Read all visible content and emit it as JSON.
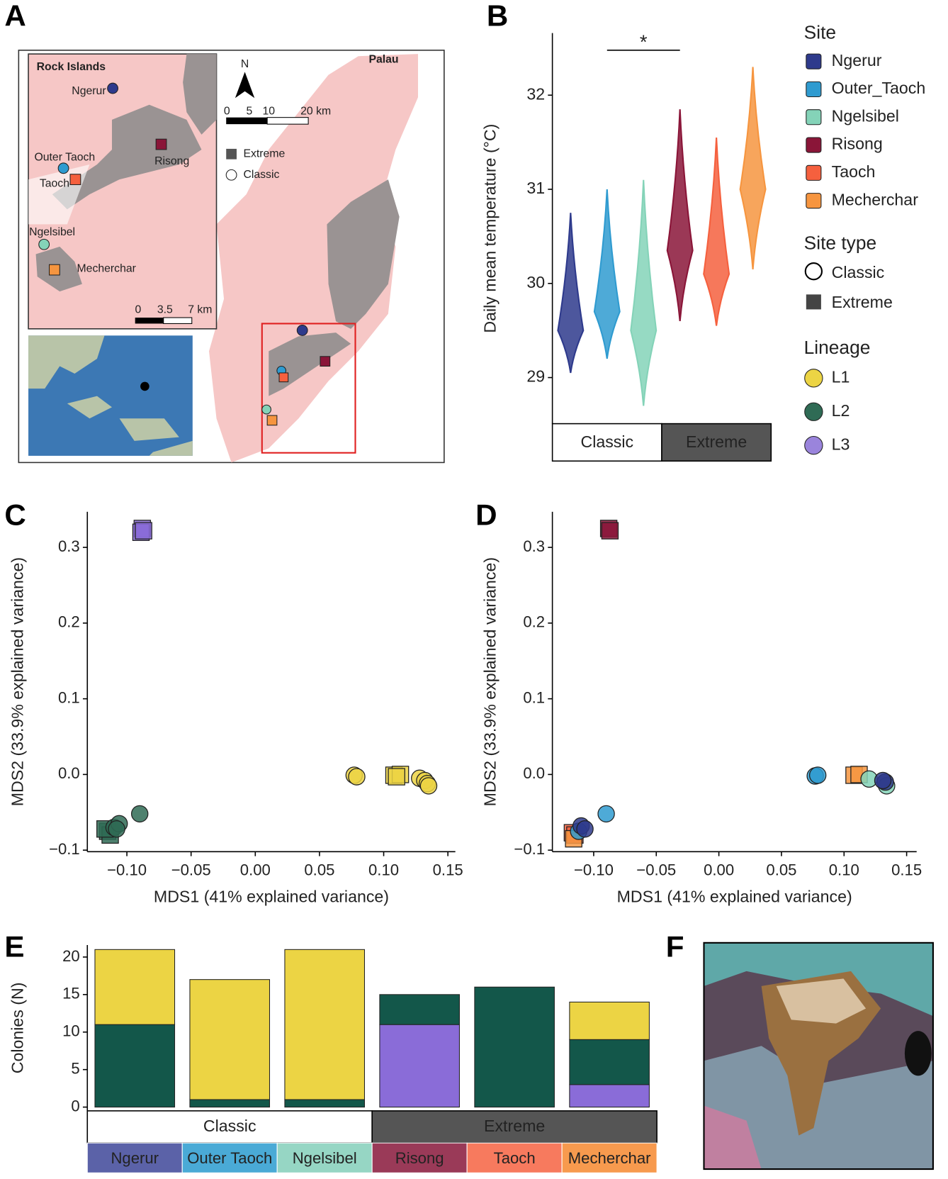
{
  "panels": [
    "A",
    "B",
    "C",
    "D",
    "E",
    "F"
  ],
  "map": {
    "inset_title": "Rock Islands",
    "region": "Palau",
    "north": "N",
    "scale_main": [
      "0",
      "5",
      "10",
      "20 km"
    ],
    "scale_inset": [
      "0",
      "3.5",
      "7 km"
    ],
    "legend": [
      "Extreme",
      "Classic"
    ],
    "sites": [
      "Ngerur",
      "Outer Taoch",
      "Taoch",
      "Risong",
      "Ngelsibel",
      "Mecherchar"
    ]
  },
  "chart_data": [
    {
      "type": "violin",
      "ylabel": "Daily mean temperature (°C)",
      "ylim": [
        28.51,
        32.66
      ],
      "yticks": [
        29,
        30,
        31,
        32
      ],
      "annotation": "*",
      "facets": [
        "Classic",
        "Extreme"
      ],
      "legend_title": "Site",
      "series": [
        {
          "name": "Ngerur",
          "color": "#2e3a8c",
          "min": 29.05,
          "median": 29.5,
          "max": 30.75
        },
        {
          "name": "Outer_Taoch",
          "color": "#2f9bd0",
          "min": 29.2,
          "median": 29.7,
          "max": 31.0
        },
        {
          "name": "Ngelsibel",
          "color": "#84d3b8",
          "min": 28.7,
          "median": 29.5,
          "max": 31.1
        },
        {
          "name": "Risong",
          "color": "#8a1538",
          "min": 29.6,
          "median": 30.35,
          "max": 31.85
        },
        {
          "name": "Taoch",
          "color": "#f5603e",
          "min": 29.55,
          "median": 30.1,
          "max": 31.55
        },
        {
          "name": "Mecherchar",
          "color": "#f6953f",
          "min": 30.15,
          "median": 31.0,
          "max": 32.3
        }
      ],
      "shape_legend": {
        "title": "Site type",
        "items": [
          "Classic",
          "Extreme"
        ]
      },
      "color_legend": {
        "title": "Lineage",
        "items": [
          {
            "name": "L1",
            "color": "#ecd444"
          },
          {
            "name": "L2",
            "color": "#2f6b55"
          },
          {
            "name": "L3",
            "color": "#9a84dc"
          }
        ]
      }
    },
    {
      "type": "scatter",
      "xlabel": "MDS1 (41% explained variance)",
      "ylabel": "MDS2 (33.9% explained variance)",
      "xlim": [
        -0.1308,
        0.1558
      ],
      "ylim": [
        -0.102,
        0.347
      ],
      "xticks": [
        {
          "value": -0.1,
          "label": "−0.10"
        },
        {
          "value": -0.05,
          "label": "−0.05"
        },
        {
          "value": 0,
          "label": "0.00"
        },
        {
          "value": 0.05,
          "label": "0.05"
        },
        {
          "value": 0.1,
          "label": "0.10"
        },
        {
          "value": 0.15,
          "label": "0.15"
        }
      ],
      "yticks": [
        {
          "value": -0.1,
          "label": "−0.1"
        },
        {
          "value": 0,
          "label": "0.0"
        },
        {
          "value": 0.1,
          "label": "0.1"
        },
        {
          "value": 0.2,
          "label": "0.2"
        },
        {
          "value": 0.3,
          "label": "0.3"
        }
      ],
      "series": [
        {
          "color": "#8a6cd8",
          "shape": "square",
          "x": [
            -0.088,
            -0.089,
            -0.087
          ],
          "y": [
            0.325,
            0.32,
            0.322
          ]
        },
        {
          "color": "#2f6b55",
          "shape": "square",
          "x": [
            -0.115,
            -0.113,
            -0.117
          ],
          "y": [
            -0.075,
            -0.08,
            -0.072
          ]
        },
        {
          "color": "#2f6b55",
          "shape": "circle",
          "x": [
            -0.11,
            -0.106,
            -0.108,
            -0.09
          ],
          "y": [
            -0.07,
            -0.065,
            -0.072,
            -0.052
          ]
        },
        {
          "color": "#ecd444",
          "shape": "square",
          "x": [
            0.108,
            0.113,
            0.11
          ],
          "y": [
            -0.001,
            0.0,
            -0.003
          ]
        },
        {
          "color": "#ecd444",
          "shape": "circle",
          "x": [
            0.077,
            0.079,
            0.128,
            0.132,
            0.134,
            0.135
          ],
          "y": [
            -0.001,
            -0.003,
            -0.005,
            -0.008,
            -0.012,
            -0.015
          ]
        }
      ]
    },
    {
      "type": "scatter",
      "xlabel": "MDS1 (41% explained variance)",
      "ylabel": "MDS2 (33.9% explained variance)",
      "xlim": [
        -0.133,
        0.158
      ],
      "ylim": [
        -0.102,
        0.347
      ],
      "xticks": [
        {
          "value": -0.1,
          "label": "−0.10"
        },
        {
          "value": -0.05,
          "label": "−0.05"
        },
        {
          "value": 0,
          "label": "0.00"
        },
        {
          "value": 0.05,
          "label": "0.05"
        },
        {
          "value": 0.1,
          "label": "0.10"
        },
        {
          "value": 0.15,
          "label": "0.15"
        }
      ],
      "yticks": [
        {
          "value": -0.1,
          "label": "−0.1"
        },
        {
          "value": 0,
          "label": "0.0"
        },
        {
          "value": 0.1,
          "label": "0.1"
        },
        {
          "value": 0.2,
          "label": "0.2"
        },
        {
          "value": 0.3,
          "label": "0.3"
        }
      ],
      "series": [
        {
          "color": "#8a1538",
          "shape": "square",
          "x": [
            -0.088,
            -0.087
          ],
          "y": [
            0.325,
            0.322
          ]
        },
        {
          "color": "#f5603e",
          "shape": "square",
          "x": [
            -0.117,
            -0.115
          ],
          "y": [
            -0.077,
            -0.08
          ]
        },
        {
          "color": "#f6953f",
          "shape": "square",
          "x": [
            -0.116,
            0.108,
            0.112
          ],
          "y": [
            -0.085,
            -0.001,
            0.0
          ]
        },
        {
          "color": "#2f9bd0",
          "shape": "circle",
          "x": [
            -0.09,
            0.077,
            0.079,
            -0.112
          ],
          "y": [
            -0.052,
            -0.002,
            -0.001,
            -0.075
          ]
        },
        {
          "color": "#84d3b8",
          "shape": "circle",
          "x": [
            0.12,
            0.134
          ],
          "y": [
            -0.006,
            -0.015
          ]
        },
        {
          "color": "#2e3a8c",
          "shape": "circle",
          "x": [
            -0.11,
            -0.107,
            0.133,
            0.131
          ],
          "y": [
            -0.068,
            -0.072,
            -0.01,
            -0.008
          ]
        }
      ]
    },
    {
      "type": "stacked_bar",
      "ylabel": "Colonies (N)",
      "ylim": [
        -0.5,
        21.6
      ],
      "yticks": [
        0,
        5,
        10,
        15,
        20
      ],
      "categories": [
        "Ngerur",
        "Outer Taoch",
        "Ngelsibel",
        "Risong",
        "Taoch",
        "Mecherchar"
      ],
      "category_colors": [
        "#5b62a8",
        "#4aaad6",
        "#96d6c4",
        "#9a3a58",
        "#f77a5e",
        "#f79a4e"
      ],
      "groups": [
        "Classic",
        "Extreme"
      ],
      "series": [
        {
          "color": "#8a6cd8",
          "values": [
            0,
            0,
            0,
            11,
            0,
            3
          ]
        },
        {
          "color": "#13574a",
          "values": [
            11,
            1,
            1,
            4,
            16,
            6
          ]
        },
        {
          "color": "#ecd444",
          "values": [
            10,
            16,
            20,
            0,
            0,
            5
          ]
        }
      ]
    }
  ]
}
